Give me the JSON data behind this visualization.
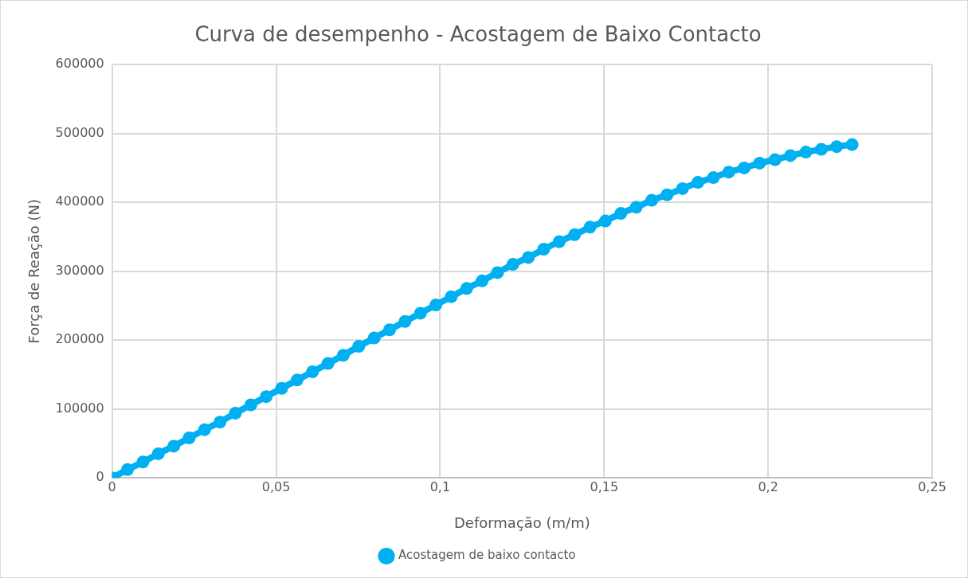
{
  "chart_data": {
    "type": "line",
    "title": "Curva de desempenho - Acostagem de Baixo Contacto",
    "xlabel": "Deformação (m/m)",
    "ylabel": "Força de Reação (N)",
    "x": [
      0,
      0.0047,
      0.0094,
      0.0141,
      0.0188,
      0.0235,
      0.0282,
      0.0329,
      0.0376,
      0.0423,
      0.047,
      0.0517,
      0.0564,
      0.0611,
      0.0658,
      0.0705,
      0.0752,
      0.0799,
      0.0846,
      0.0893,
      0.094,
      0.0987,
      0.1034,
      0.1081,
      0.1128,
      0.1175,
      0.1222,
      0.1269,
      0.1316,
      0.1363,
      0.141,
      0.1457,
      0.1504,
      0.1551,
      0.1598,
      0.1645,
      0.1692,
      0.1739,
      0.1786,
      0.1833,
      0.188,
      0.1927,
      0.1974,
      0.2021,
      0.2068,
      0.2115,
      0.2162,
      0.2209,
      0.2256
    ],
    "series": [
      {
        "name": "Acostagem de baixo contacto",
        "color": "#00b0f0",
        "values": [
          0,
          12000,
          23000,
          35000,
          46000,
          58000,
          70000,
          81000,
          94000,
          106000,
          118000,
          130000,
          142000,
          154000,
          166000,
          178000,
          191000,
          203000,
          215000,
          227000,
          239000,
          251000,
          263000,
          275000,
          286000,
          298000,
          310000,
          320000,
          332000,
          343000,
          353000,
          364000,
          373000,
          384000,
          393000,
          403000,
          411000,
          420000,
          429000,
          436000,
          444000,
          450000,
          457000,
          462000,
          468000,
          473000,
          477000,
          481000,
          484000
        ]
      }
    ],
    "xlim": [
      0,
      0.25
    ],
    "xticks": [
      0,
      {
        "value": 0.05,
        "label": "0,05"
      },
      {
        "value": 0.1,
        "label": "0,1"
      },
      {
        "value": 0.15,
        "label": "0,15"
      },
      {
        "value": 0.2,
        "label": "0,2"
      },
      {
        "value": 0.25,
        "label": "0,25"
      }
    ],
    "ylim": [
      0,
      600000
    ],
    "yticks": [
      0,
      100000,
      200000,
      300000,
      400000,
      500000,
      600000
    ],
    "grid": true,
    "legend": "bottom",
    "marker": "circle",
    "line_style": "solid"
  }
}
